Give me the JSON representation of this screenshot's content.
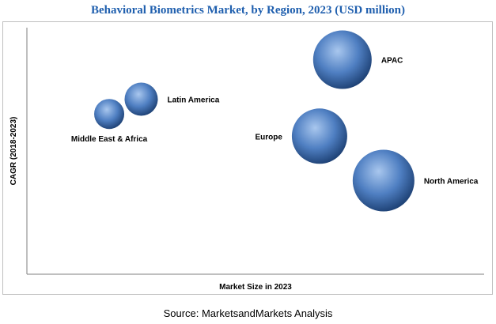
{
  "colors": {
    "title": "#1f5fae",
    "bubble_light": "#a9c7ee",
    "bubble_mid": "#4f7fc2",
    "bubble_dark": "#1c3f72",
    "axis": "#7f7f7f",
    "frame": "#bfbfbf"
  },
  "chart_data": {
    "type": "bubble",
    "title": "Behavioral Biometrics Market, by Region, 2023 (USD million)",
    "xlabel": "Market Size in 2023",
    "ylabel": "CAGR (2018-2023)",
    "xlim": [
      0,
      100
    ],
    "ylim": [
      0,
      100
    ],
    "grid": false,
    "legend": "none",
    "series": [
      {
        "name": "APAC",
        "x": 69,
        "y": 87,
        "size": 37,
        "label_side": "right"
      },
      {
        "name": "Europe",
        "x": 64,
        "y": 56,
        "size": 35,
        "label_side": "left"
      },
      {
        "name": "North America",
        "x": 78,
        "y": 38,
        "size": 39,
        "label_side": "right"
      },
      {
        "name": "Latin America",
        "x": 25,
        "y": 71,
        "size": 21,
        "label_side": "right"
      },
      {
        "name": "Middle East & Africa",
        "x": 18,
        "y": 65,
        "size": 19,
        "label_side": "below"
      }
    ]
  },
  "footer": {
    "source": "Source: MarketsandMarkets Analysis"
  }
}
